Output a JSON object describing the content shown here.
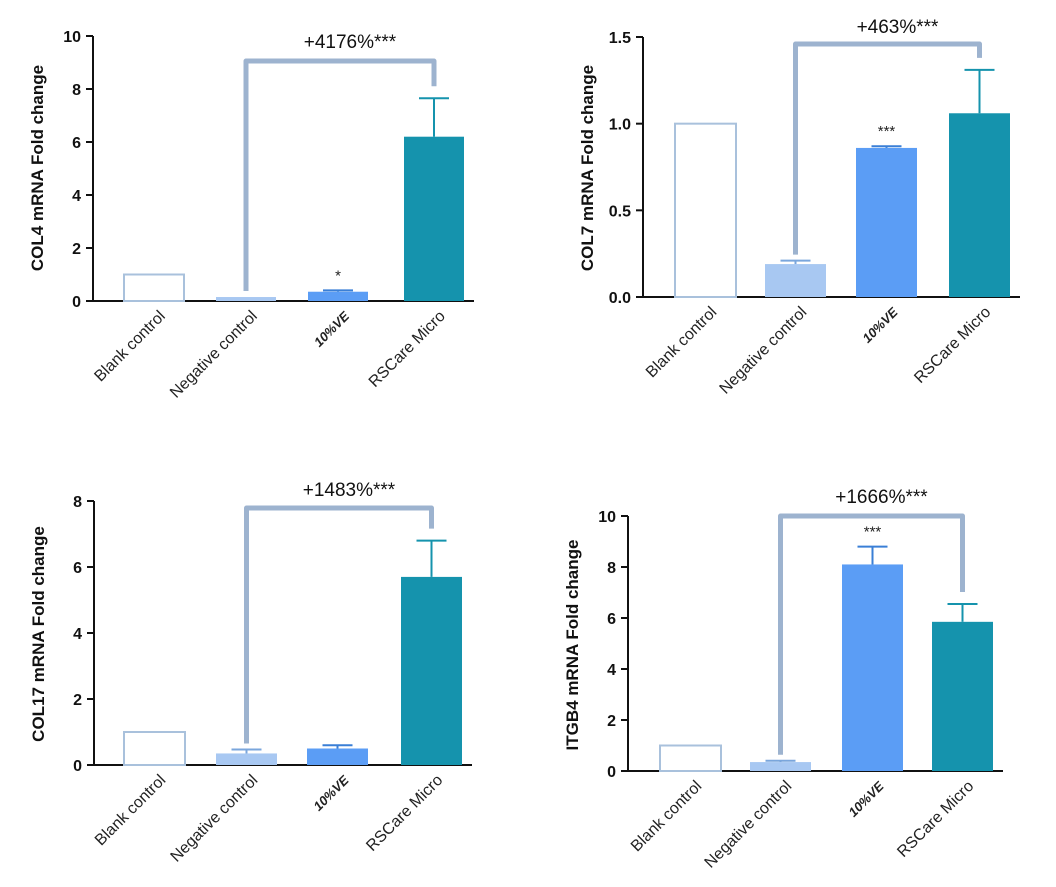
{
  "chart_data": [
    {
      "type": "bar",
      "categories": [
        "Blank control",
        "Negative control",
        "10%VE",
        "RSCare Micro"
      ],
      "values": [
        1.0,
        0.15,
        0.35,
        6.2
      ],
      "errors": [
        0,
        0,
        0.05,
        1.45
      ],
      "ylabel": "COL4 mRNA Fold change",
      "ylim": [
        0,
        10
      ],
      "yticks": [
        "0",
        "2",
        "4",
        "6",
        "8",
        "10"
      ],
      "bar_significance": [
        "",
        "",
        "*",
        ""
      ],
      "comparison": {
        "from": "Negative control",
        "to": "RSCare Micro",
        "label": "+4176%***"
      }
    },
    {
      "type": "bar",
      "categories": [
        "Blank control",
        "Negative control",
        "10%VE",
        "RSCare Micro"
      ],
      "values": [
        1.0,
        0.19,
        0.86,
        1.06
      ],
      "errors": [
        0,
        0.02,
        0.01,
        0.25
      ],
      "ylabel": "COL7 mRNA Fold change",
      "ylim": [
        0,
        1.5
      ],
      "yticks": [
        "0.0",
        "0.5",
        "1.0",
        "1.5"
      ],
      "bar_significance": [
        "",
        "",
        "***",
        ""
      ],
      "comparison": {
        "from": "Negative control",
        "to": "RSCare Micro",
        "label": "+463%***"
      }
    },
    {
      "type": "bar",
      "categories": [
        "Blank control",
        "Negative control",
        "10%VE",
        "RSCare Micro"
      ],
      "values": [
        1.0,
        0.35,
        0.5,
        5.7
      ],
      "errors": [
        0,
        0.12,
        0.1,
        1.1
      ],
      "ylabel": "COL17 mRNA Fold change",
      "ylim": [
        0,
        8
      ],
      "yticks": [
        "0",
        "2",
        "4",
        "6",
        "8"
      ],
      "bar_significance": [
        "",
        "",
        "",
        ""
      ],
      "comparison": {
        "from": "Negative control",
        "to": "RSCare Micro",
        "label": "+1483%***"
      }
    },
    {
      "type": "bar",
      "categories": [
        "Blank control",
        "Negative control",
        "10%VE",
        "RSCare Micro"
      ],
      "values": [
        1.0,
        0.35,
        8.1,
        5.85
      ],
      "errors": [
        0,
        0.05,
        0.7,
        0.7
      ],
      "ylabel": "ITGB4 mRNA Fold change",
      "ylim": [
        0,
        10
      ],
      "yticks": [
        "0",
        "2",
        "4",
        "6",
        "8",
        "10"
      ],
      "bar_significance": [
        "",
        "",
        "***",
        ""
      ],
      "comparison": {
        "from": "Negative control",
        "to": "RSCare Micro",
        "label": "+1666%***"
      }
    }
  ],
  "colors": {
    "blank_fill": "#ffffff",
    "blank_stroke": "#a9c1dc",
    "negative": "#a8c8f2",
    "ve": "#5b9df5",
    "rscare": "#1593ad",
    "bracket": "#9db3cf",
    "axis": "#111111"
  }
}
